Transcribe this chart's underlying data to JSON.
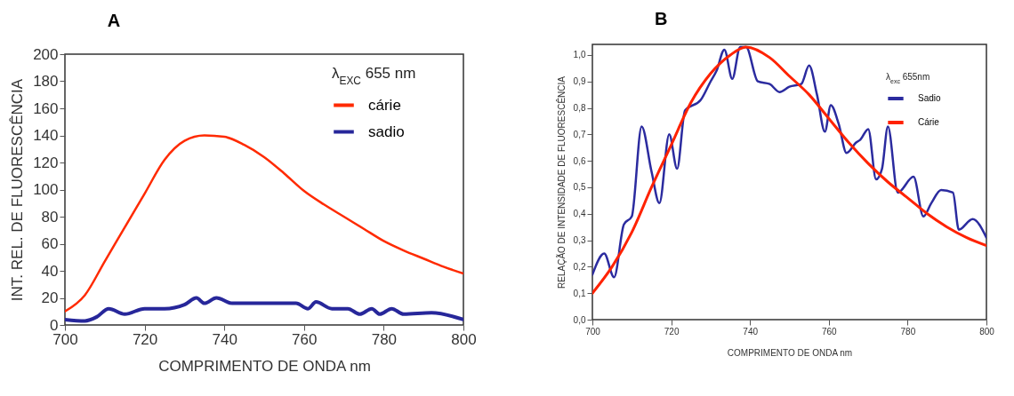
{
  "chart_data": [
    {
      "type": "line",
      "title": "A",
      "xlabel": "COMPRIMENTO DE ONDA nm",
      "ylabel": "INT. REL. DE FLUORESCÊNCIA",
      "legend_title": "λ$_{EXC}$ 655 nm",
      "legend": "top right",
      "xlim": [
        700,
        800
      ],
      "xticks": [
        700,
        720,
        740,
        760,
        780,
        800
      ],
      "ylim": [
        0,
        200
      ],
      "yticks": [
        0,
        20,
        40,
        60,
        80,
        100,
        120,
        140,
        160,
        180,
        200
      ],
      "series": [
        {
          "name": "cárie",
          "color": "#ff2a00",
          "x": [
            700,
            705,
            710,
            715,
            720,
            725,
            730,
            735,
            740,
            745,
            750,
            755,
            760,
            765,
            770,
            775,
            780,
            785,
            790,
            795,
            800
          ],
          "values": [
            10,
            22,
            47,
            72,
            97,
            122,
            136,
            140,
            139,
            133,
            124,
            112,
            99,
            89,
            80,
            71,
            62,
            55,
            49,
            43,
            38
          ]
        },
        {
          "name": "sadio",
          "color": "#27279a",
          "x": [
            700,
            705,
            708,
            711,
            715,
            720,
            725,
            730,
            733,
            735,
            738,
            742,
            750,
            758,
            761,
            763,
            767,
            771,
            774,
            777,
            779,
            782,
            785,
            792,
            800
          ],
          "values": [
            4,
            3,
            6,
            12,
            8,
            12,
            12,
            15,
            20,
            16,
            20,
            16,
            16,
            16,
            12,
            17,
            12,
            12,
            8,
            12,
            8,
            12,
            8,
            9,
            4
          ]
        }
      ]
    },
    {
      "type": "line",
      "title": "B",
      "xlabel": "COMPRIMENTO DE ONDA nm",
      "ylabel": "RELAÇÃO DE INTENSIDADE DE FLUORESCÊNCIA",
      "legend_title": "λ$_{exc}$ 655nm",
      "legend": "top right",
      "xlim": [
        700,
        800
      ],
      "xticks": [
        700,
        720,
        740,
        760,
        780,
        800
      ],
      "ylim": [
        0,
        1.04
      ],
      "yticks": [
        {
          "value": 0,
          "label": "0,0"
        },
        {
          "value": 0.1,
          "label": "0,1"
        },
        {
          "value": 0.2,
          "label": "0,2"
        },
        {
          "value": 0.3,
          "label": "0,3"
        },
        {
          "value": 0.4,
          "label": "0,4"
        },
        {
          "value": 0.5,
          "label": "0,5"
        },
        {
          "value": 0.6,
          "label": "0,6"
        },
        {
          "value": 0.7,
          "label": "0,7"
        },
        {
          "value": 0.8,
          "label": "0,8"
        },
        {
          "value": 0.9,
          "label": "0,9"
        },
        {
          "value": 1.0,
          "label": "1,0"
        }
      ],
      "series": [
        {
          "name": "Sadio",
          "color": "#2b2b9f",
          "x": [
            700,
            703,
            705.5,
            708,
            710,
            712.5,
            715,
            717,
            719.5,
            721.5,
            723.5,
            727.5,
            730,
            731.5,
            733.5,
            735.5,
            737.5,
            739,
            742,
            745,
            747.5,
            750,
            753,
            755,
            757,
            759,
            760.5,
            762.5,
            764.5,
            767,
            768,
            770,
            772,
            773.5,
            775,
            777.5,
            781.5,
            784,
            786,
            788.5,
            791.5,
            793,
            796.5,
            800
          ],
          "values": [
            0.17,
            0.25,
            0.16,
            0.36,
            0.39,
            0.73,
            0.56,
            0.44,
            0.7,
            0.57,
            0.79,
            0.83,
            0.9,
            0.94,
            1.02,
            0.91,
            1.03,
            1.03,
            0.9,
            0.89,
            0.86,
            0.88,
            0.89,
            0.96,
            0.85,
            0.71,
            0.81,
            0.74,
            0.63,
            0.67,
            0.68,
            0.72,
            0.53,
            0.57,
            0.73,
            0.48,
            0.54,
            0.39,
            0.44,
            0.49,
            0.48,
            0.34,
            0.38,
            0.31
          ]
        },
        {
          "name": "Cárie",
          "color": "#ff2200",
          "x": [
            700,
            705,
            710,
            715,
            720,
            725,
            730,
            735,
            739,
            745,
            750,
            755,
            760,
            765,
            770,
            775,
            780,
            785,
            790,
            795,
            800
          ],
          "values": [
            0.1,
            0.2,
            0.33,
            0.5,
            0.66,
            0.82,
            0.93,
            1.0,
            1.03,
            0.99,
            0.92,
            0.85,
            0.76,
            0.67,
            0.59,
            0.52,
            0.46,
            0.4,
            0.35,
            0.31,
            0.28
          ]
        }
      ]
    }
  ]
}
